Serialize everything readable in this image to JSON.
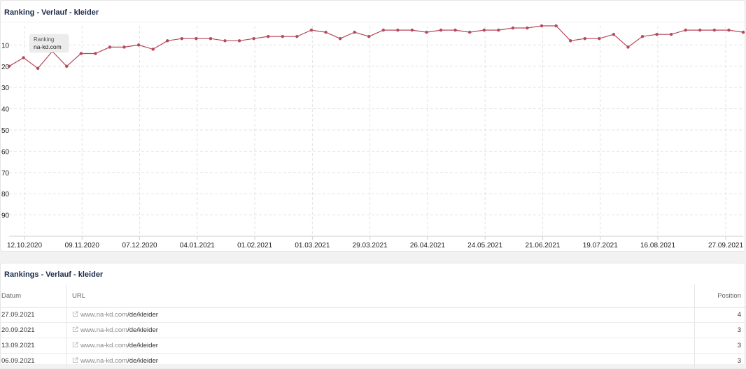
{
  "chart_panel": {
    "title": "Ranking - Verlauf - kleider"
  },
  "tooltip": {
    "label": "Ranking",
    "value": "na-kd.com"
  },
  "chart_data": {
    "type": "line",
    "title": "Ranking - Verlauf - kleider",
    "xlabel": "",
    "ylabel": "",
    "y_reversed": true,
    "ylim": [
      1,
      100
    ],
    "y_ticks": [
      10,
      20,
      30,
      40,
      50,
      60,
      70,
      80,
      90
    ],
    "x_tick_labels": [
      "12.10.2020",
      "09.11.2020",
      "07.12.2020",
      "04.01.2021",
      "01.02.2021",
      "01.03.2021",
      "29.03.2021",
      "26.04.2021",
      "24.05.2021",
      "21.06.2021",
      "19.07.2021",
      "16.08.2021",
      "27.09.2021"
    ],
    "grid": true,
    "line_color": "#b5495b",
    "series": [
      {
        "values": [
          20,
          16,
          21,
          13,
          20,
          14,
          14,
          11,
          11,
          10,
          12,
          8,
          7,
          7,
          7,
          8,
          8,
          7,
          6,
          6,
          6,
          3,
          4,
          7,
          4,
          6,
          3,
          3,
          3,
          4,
          3,
          3,
          4,
          3,
          3,
          2,
          2,
          1,
          1,
          8,
          7,
          7,
          5,
          11,
          6,
          5,
          5,
          3,
          3,
          3,
          3,
          4
        ]
      }
    ]
  },
  "table_panel": {
    "title": "Rankings - Verlauf - kleider",
    "columns": {
      "date": "Datum",
      "url": "URL",
      "position": "Position"
    },
    "rows": [
      {
        "date": "27.09.2021",
        "url_domain": "www.na-kd.com",
        "url_path": "/de/kleider",
        "position": "4"
      },
      {
        "date": "20.09.2021",
        "url_domain": "www.na-kd.com",
        "url_path": "/de/kleider",
        "position": "3"
      },
      {
        "date": "13.09.2021",
        "url_domain": "www.na-kd.com",
        "url_path": "/de/kleider",
        "position": "3"
      },
      {
        "date": "06.09.2021",
        "url_domain": "www.na-kd.com",
        "url_path": "/de/kleider",
        "position": "3"
      }
    ]
  }
}
